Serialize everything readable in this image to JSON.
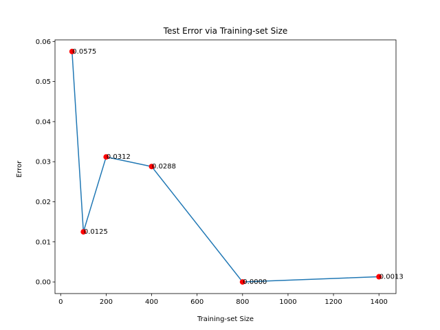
{
  "chart_data": {
    "type": "line",
    "title": "Test Error via Training-set Size",
    "xlabel": "Training-set Size",
    "ylabel": "Error",
    "xlim": [
      -25,
      1475
    ],
    "ylim": [
      -0.0029,
      0.0604
    ],
    "xticks": [
      0,
      200,
      400,
      600,
      800,
      1000,
      1200,
      1400
    ],
    "yticks": [
      0.0,
      0.01,
      0.02,
      0.03,
      0.04,
      0.05,
      0.06
    ],
    "ytick_labels": [
      "0.00",
      "0.01",
      "0.02",
      "0.03",
      "0.04",
      "0.05",
      "0.06"
    ],
    "grid": false,
    "line_color": "#1f77b4",
    "marker_color": "#ff0000",
    "series": [
      {
        "x": [
          50,
          100,
          200,
          400,
          800,
          1400
        ],
        "y": [
          0.0575,
          0.0125,
          0.0312,
          0.0288,
          0.0,
          0.0013
        ],
        "labels": [
          "0.0575",
          "0.0125",
          "0.0312",
          "0.0288",
          "0.0000",
          "0.0013"
        ]
      }
    ]
  }
}
